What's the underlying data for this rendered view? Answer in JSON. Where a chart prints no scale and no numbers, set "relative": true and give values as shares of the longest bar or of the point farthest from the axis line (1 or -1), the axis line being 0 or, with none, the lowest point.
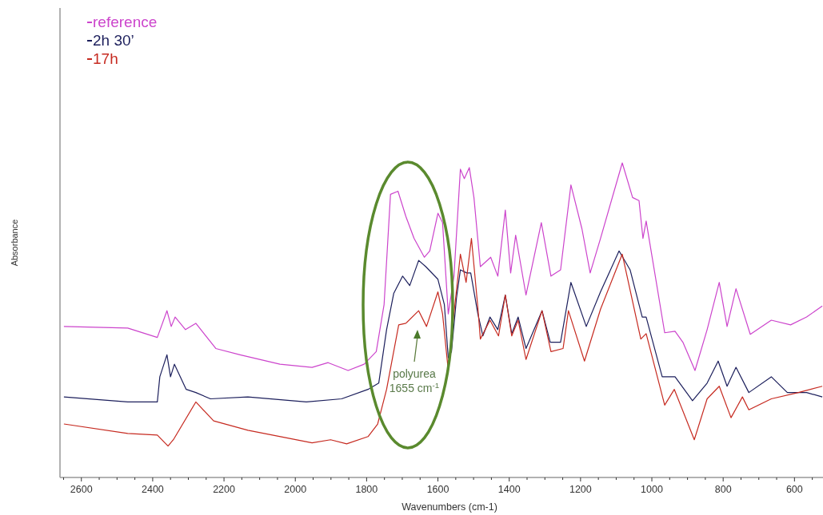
{
  "chart_data": {
    "type": "line",
    "relative": true,
    "xlabel": "Wavenumbers (cm-1)",
    "ylabel": "Absorbance",
    "legend": "top left",
    "xlim": [
      2660,
      520
    ],
    "xticks": [
      {
        "value": 2650,
        "label": null
      },
      2600,
      {
        "value": 2550,
        "label": null
      },
      {
        "value": 2500,
        "label": null
      },
      {
        "value": 2450,
        "label": null
      },
      2400,
      {
        "value": 2350,
        "label": null
      },
      {
        "value": 2300,
        "label": null
      },
      {
        "value": 2250,
        "label": null
      },
      2200,
      {
        "value": 2150,
        "label": null
      },
      {
        "value": 2100,
        "label": null
      },
      {
        "value": 2050,
        "label": null
      },
      2000,
      {
        "value": 1950,
        "label": null
      },
      {
        "value": 1900,
        "label": null
      },
      {
        "value": 1850,
        "label": null
      },
      1800,
      {
        "value": 1750,
        "label": null
      },
      {
        "value": 1700,
        "label": null
      },
      {
        "value": 1650,
        "label": null
      },
      1600,
      {
        "value": 1550,
        "label": null
      },
      {
        "value": 1500,
        "label": null
      },
      {
        "value": 1450,
        "label": null
      },
      1400,
      {
        "value": 1350,
        "label": null
      },
      {
        "value": 1300,
        "label": null
      },
      {
        "value": 1250,
        "label": null
      },
      1200,
      {
        "value": 1150,
        "label": null
      },
      {
        "value": 1100,
        "label": null
      },
      {
        "value": 1050,
        "label": null
      },
      1000,
      {
        "value": 950,
        "label": null
      },
      {
        "value": 900,
        "label": null
      },
      {
        "value": 850,
        "label": null
      },
      800,
      {
        "value": 750,
        "label": null
      },
      {
        "value": 700,
        "label": null
      },
      {
        "value": 650,
        "label": null
      },
      600,
      {
        "value": 550,
        "label": null
      }
    ],
    "annotations": [
      "polyurea 1655 cm$^{-1}$"
    ],
    "series": [
      {
        "name": "reference",
        "color": "#cc44cc",
        "x": [
          2649,
          2470,
          2387,
          2360,
          2348,
          2337,
          2308,
          2279,
          2223,
          2155,
          2043,
          1953,
          1908,
          1852,
          1807,
          1773,
          1751,
          1733,
          1712,
          1690,
          1667,
          1638,
          1623,
          1600,
          1587,
          1571,
          1555,
          1537,
          1526,
          1512,
          1499,
          1481,
          1452,
          1432,
          1411,
          1396,
          1382,
          1353,
          1310,
          1283,
          1256,
          1227,
          1196,
          1173,
          1144,
          1083,
          1054,
          1036,
          1025,
          1016,
          964,
          935,
          913,
          879,
          845,
          811,
          789,
          764,
          724,
          665,
          611,
          566,
          522
        ],
        "values": [
          0.48,
          0.475,
          0.445,
          0.53,
          0.48,
          0.51,
          0.47,
          0.49,
          0.41,
          0.39,
          0.36,
          0.35,
          0.365,
          0.34,
          0.36,
          0.4,
          0.55,
          0.9,
          0.91,
          0.83,
          0.76,
          0.7,
          0.72,
          0.84,
          0.81,
          0.52,
          0.64,
          0.98,
          0.95,
          0.985,
          0.89,
          0.67,
          0.7,
          0.64,
          0.85,
          0.65,
          0.77,
          0.58,
          0.81,
          0.64,
          0.66,
          0.93,
          0.79,
          0.65,
          0.76,
          1,
          0.89,
          0.88,
          0.76,
          0.815,
          0.46,
          0.465,
          0.43,
          0.34,
          0.47,
          0.62,
          0.48,
          0.6,
          0.455,
          0.5,
          0.485,
          0.51,
          0.545
        ]
      },
      {
        "name": "2h 30’",
        "color": "#1c1f5c",
        "x": [
          2649,
          2470,
          2387,
          2380,
          2360,
          2350,
          2339,
          2306,
          2279,
          2238,
          2133,
          1969,
          1870,
          1796,
          1766,
          1744,
          1724,
          1699,
          1679,
          1654,
          1634,
          1600,
          1582,
          1571,
          1562,
          1548,
          1537,
          1519,
          1508,
          1488,
          1474,
          1454,
          1432,
          1411,
          1393,
          1375,
          1353,
          1308,
          1285,
          1256,
          1227,
          1184,
          1144,
          1092,
          1061,
          1027,
          1016,
          971,
          935,
          886,
          845,
          814,
          789,
          764,
          728,
          665,
          620,
          566,
          522
        ],
        "values": [
          0.256,
          0.24,
          0.24,
          0.32,
          0.39,
          0.32,
          0.36,
          0.28,
          0.27,
          0.25,
          0.256,
          0.24,
          0.25,
          0.28,
          0.3,
          0.47,
          0.585,
          0.64,
          0.61,
          0.69,
          0.67,
          0.63,
          0.55,
          0.38,
          0.4,
          0.57,
          0.66,
          0.65,
          0.65,
          0.52,
          0.45,
          0.51,
          0.47,
          0.58,
          0.457,
          0.51,
          0.41,
          0.53,
          0.43,
          0.43,
          0.62,
          0.48,
          0.59,
          0.72,
          0.66,
          0.51,
          0.51,
          0.32,
          0.32,
          0.244,
          0.3,
          0.37,
          0.29,
          0.35,
          0.27,
          0.32,
          0.27,
          0.27,
          0.256
        ]
      },
      {
        "name": "17h",
        "color": "#c62a20",
        "x": [
          2649,
          2470,
          2387,
          2357,
          2342,
          2279,
          2229,
          2133,
          1953,
          1901,
          1856,
          1796,
          1769,
          1744,
          1710,
          1690,
          1654,
          1632,
          1600,
          1587,
          1571,
          1560,
          1537,
          1521,
          1506,
          1488,
          1481,
          1454,
          1430,
          1411,
          1393,
          1375,
          1353,
          1308,
          1283,
          1249,
          1234,
          1189,
          1144,
          1083,
          1031,
          1016,
          964,
          937,
          881,
          845,
          811,
          778,
          746,
          728,
          665,
          589,
          522
        ],
        "values": [
          0.17,
          0.14,
          0.135,
          0.1,
          0.12,
          0.24,
          0.18,
          0.15,
          0.11,
          0.12,
          0.107,
          0.13,
          0.17,
          0.28,
          0.485,
          0.49,
          0.53,
          0.48,
          0.59,
          0.52,
          0.34,
          0.47,
          0.71,
          0.62,
          0.76,
          0.54,
          0.44,
          0.5,
          0.45,
          0.58,
          0.45,
          0.5,
          0.375,
          0.53,
          0.4,
          0.41,
          0.53,
          0.37,
          0.535,
          0.71,
          0.44,
          0.457,
          0.23,
          0.28,
          0.12,
          0.25,
          0.29,
          0.19,
          0.256,
          0.215,
          0.25,
          0.27,
          0.29
        ]
      }
    ]
  }
}
